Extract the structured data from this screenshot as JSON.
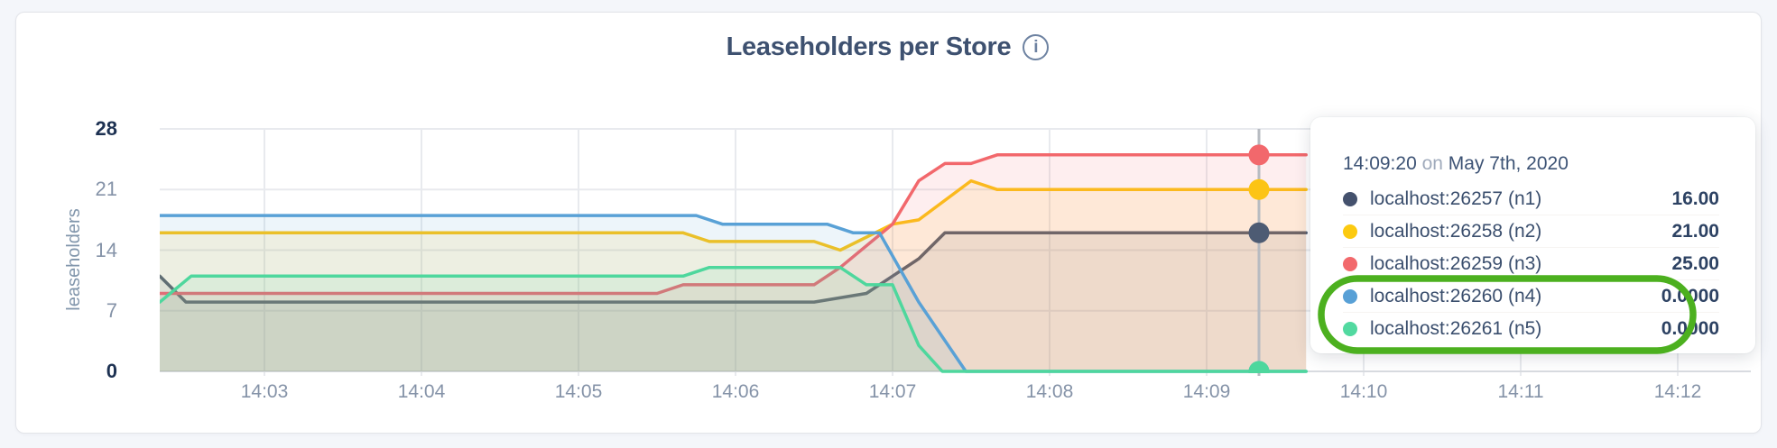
{
  "header": {
    "title": "Leaseholders per Store",
    "info_icon_glyph": "i"
  },
  "chart_data": {
    "type": "area",
    "title": "Leaseholders per Store",
    "ylabel": "leaseholders",
    "ylim": [
      0,
      28
    ],
    "grid": true,
    "x_unit": "seconds after 14:00:00",
    "y_ticks": [
      {
        "v": 0,
        "label": "0",
        "bold": true
      },
      {
        "v": 7,
        "label": "7",
        "bold": false
      },
      {
        "v": 14,
        "label": "14",
        "bold": false
      },
      {
        "v": 21,
        "label": "21",
        "bold": false
      },
      {
        "v": 28,
        "label": "28",
        "bold": true
      }
    ],
    "x_ticks": [
      {
        "t": 180,
        "label": "14:03"
      },
      {
        "t": 240,
        "label": "14:04"
      },
      {
        "t": 300,
        "label": "14:05"
      },
      {
        "t": 360,
        "label": "14:06"
      },
      {
        "t": 420,
        "label": "14:07"
      },
      {
        "t": 480,
        "label": "14:08"
      },
      {
        "t": 540,
        "label": "14:09"
      },
      {
        "t": 600,
        "label": "14:10"
      },
      {
        "t": 660,
        "label": "14:11"
      },
      {
        "t": 720,
        "label": "14:12"
      }
    ],
    "series": [
      {
        "name": "localhost:26257 (n1)",
        "color": "#4d5b73",
        "points": [
          [
            140,
            11
          ],
          [
            150,
            8
          ],
          [
            390,
            8
          ],
          [
            410,
            9
          ],
          [
            420,
            11
          ],
          [
            430,
            13
          ],
          [
            440,
            16
          ],
          [
            578,
            16
          ]
        ]
      },
      {
        "name": "localhost:26258 (n2)",
        "color": "#fcc415",
        "points": [
          [
            140,
            16
          ],
          [
            340,
            16
          ],
          [
            350,
            15
          ],
          [
            390,
            15
          ],
          [
            400,
            14
          ],
          [
            420,
            17
          ],
          [
            430,
            17.5
          ],
          [
            450,
            22
          ],
          [
            460,
            21
          ],
          [
            578,
            21
          ]
        ]
      },
      {
        "name": "localhost:26259 (n3)",
        "color": "#f2686c",
        "points": [
          [
            140,
            9
          ],
          [
            330,
            9
          ],
          [
            340,
            10
          ],
          [
            390,
            10
          ],
          [
            400,
            12
          ],
          [
            420,
            17
          ],
          [
            430,
            22
          ],
          [
            440,
            24
          ],
          [
            450,
            24
          ],
          [
            460,
            25
          ],
          [
            578,
            25
          ]
        ]
      },
      {
        "name": "localhost:26260 (n4)",
        "color": "#59a1d6",
        "points": [
          [
            140,
            18
          ],
          [
            345,
            18
          ],
          [
            355,
            17
          ],
          [
            395,
            17
          ],
          [
            405,
            16
          ],
          [
            415,
            16
          ],
          [
            430,
            8
          ],
          [
            448,
            0
          ],
          [
            578,
            0
          ]
        ]
      },
      {
        "name": "localhost:26261 (n5)",
        "color": "#4ed79d",
        "points": [
          [
            140,
            8
          ],
          [
            152,
            11
          ],
          [
            340,
            11
          ],
          [
            350,
            12
          ],
          [
            400,
            12
          ],
          [
            410,
            10
          ],
          [
            420,
            10
          ],
          [
            430,
            3
          ],
          [
            439,
            0
          ],
          [
            578,
            0
          ]
        ]
      }
    ],
    "hover": {
      "time_seconds": 560,
      "time_label": "14:09:20",
      "dot_values": [
        16,
        21,
        25,
        0,
        0
      ]
    }
  },
  "tooltip": {
    "time": "14:09:20",
    "on_word": "on",
    "date": "May 7th, 2020",
    "rows": [
      {
        "label": "localhost:26257 (n1)",
        "value": "16.00",
        "color": "#44516d"
      },
      {
        "label": "localhost:26258 (n2)",
        "value": "21.00",
        "color": "#fcca10"
      },
      {
        "label": "localhost:26259 (n3)",
        "value": "25.00",
        "color": "#f2696c"
      },
      {
        "label": "localhost:26260 (n4)",
        "value": "0.0000",
        "color": "#58a0d6"
      },
      {
        "label": "localhost:26261 (n5)",
        "value": "0.0000",
        "color": "#52d9a0"
      }
    ]
  },
  "annotation": {
    "shape": "green-ring",
    "color": "#4cb01f"
  },
  "colors": {
    "grid": "#e8eaee",
    "grid_zero": "#d8dbe0",
    "hover_line": "#b7bbc1",
    "title_text": "#3e5170",
    "tick_text": "#8593a8",
    "tick_text_bold": "#1d3152"
  }
}
